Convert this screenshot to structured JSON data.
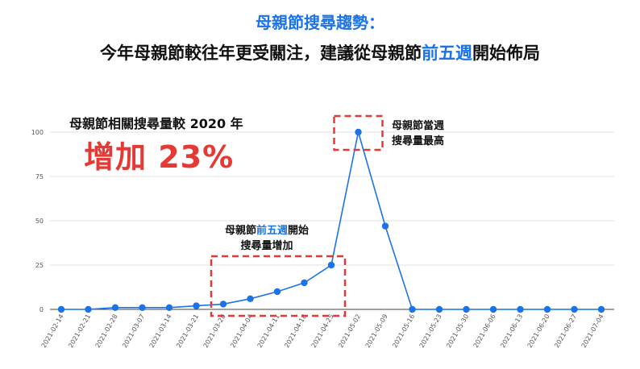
{
  "colors": {
    "accent": "#1a73e8",
    "highlight": "#e53935",
    "line": "#1a73e8",
    "grid": "#e0e0e0",
    "text": "#111111"
  },
  "header": {
    "title": "母親節搜尋趨勢：",
    "subtitle_prefix": "今年母親節較往年更受關注，建議從母親節",
    "subtitle_accent": "前五週",
    "subtitle_suffix": "開始佈局"
  },
  "stat": {
    "caption": "母親節相關搜尋量較 2020 年",
    "headline": "增加 23%"
  },
  "annotations": {
    "peak": {
      "line1": "母親節當週",
      "line2": "搜尋量最高"
    },
    "rise": {
      "line1_prefix": "母親節",
      "line1_accent": "前五週",
      "line1_suffix": "開始",
      "line2": "搜尋量增加"
    }
  },
  "chart_data": {
    "type": "line",
    "title": "",
    "xlabel": "",
    "ylabel": "",
    "ylim": [
      0,
      100
    ],
    "yticks": [
      0,
      25,
      50,
      75,
      100
    ],
    "grid": true,
    "categories": [
      "2021-02-14",
      "2021-02-21",
      "2021-02-28",
      "2021-03-07",
      "2021-03-14",
      "2021-03-21",
      "2021-03-28",
      "2021-04-04",
      "2021-04-11",
      "2021-04-18",
      "2021-04-25",
      "2021-05-02",
      "2021-05-09",
      "2021-05-16",
      "2021-05-23",
      "2021-05-30",
      "2021-06-06",
      "2021-06-13",
      "2021-06-20",
      "2021-06-27",
      "2021-07-04"
    ],
    "series": [
      {
        "values": [
          0,
          0,
          1,
          1,
          1,
          2,
          3,
          6,
          10,
          15,
          25,
          100,
          47,
          0,
          0,
          0,
          0,
          0,
          0,
          0,
          0
        ]
      }
    ]
  }
}
